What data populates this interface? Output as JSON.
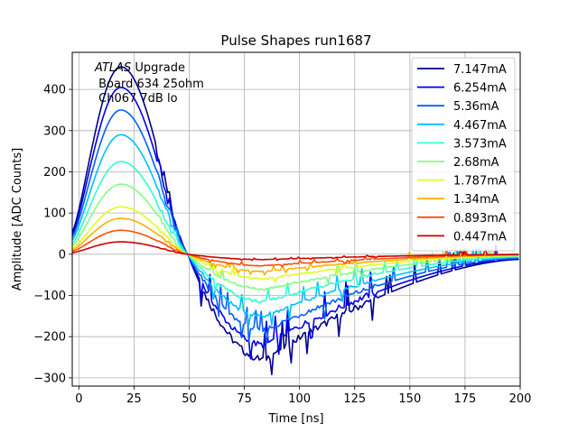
{
  "chart_data": {
    "type": "line",
    "title": "Pulse Shapes run1687",
    "xlabel": "Time [ns]",
    "ylabel": "Amplitude [ADC Counts]",
    "xlim": [
      -3,
      200
    ],
    "ylim": [
      -320,
      490
    ],
    "xticks": [
      0,
      25,
      50,
      75,
      100,
      125,
      150,
      175,
      200
    ],
    "yticks": [
      -300,
      -200,
      -100,
      0,
      100,
      200,
      300,
      400
    ],
    "grid": true,
    "legend_position": "top-right",
    "annotation": {
      "line1_italic": "ATLAS",
      "line1_rest": " Upgrade",
      "line2": " Board 634 25ohm",
      "line3": " Ch067 7dB lo"
    },
    "series": [
      {
        "name": "7.147mA",
        "color": "#00008f",
        "peak": 455,
        "min": -255
      },
      {
        "name": "6.254mA",
        "color": "#0000f0",
        "peak": 405,
        "min": -220
      },
      {
        "name": "5.36mA",
        "color": "#0060ff",
        "peak": 350,
        "min": -185
      },
      {
        "name": "4.467mA",
        "color": "#00bfff",
        "peak": 290,
        "min": -150
      },
      {
        "name": "3.573mA",
        "color": "#30ffcf",
        "peak": 225,
        "min": -115
      },
      {
        "name": "2.68mA",
        "color": "#80ff80",
        "peak": 170,
        "min": -85
      },
      {
        "name": "1.787mA",
        "color": "#dfff20",
        "peak": 115,
        "min": -60
      },
      {
        "name": "1.34mA",
        "color": "#ffb000",
        "peak": 87,
        "min": -42
      },
      {
        "name": "0.893mA",
        "color": "#ff5000",
        "peak": 58,
        "min": -28
      },
      {
        "name": "0.447mA",
        "color": "#d00000",
        "peak": 30,
        "min": -13
      }
    ]
  }
}
